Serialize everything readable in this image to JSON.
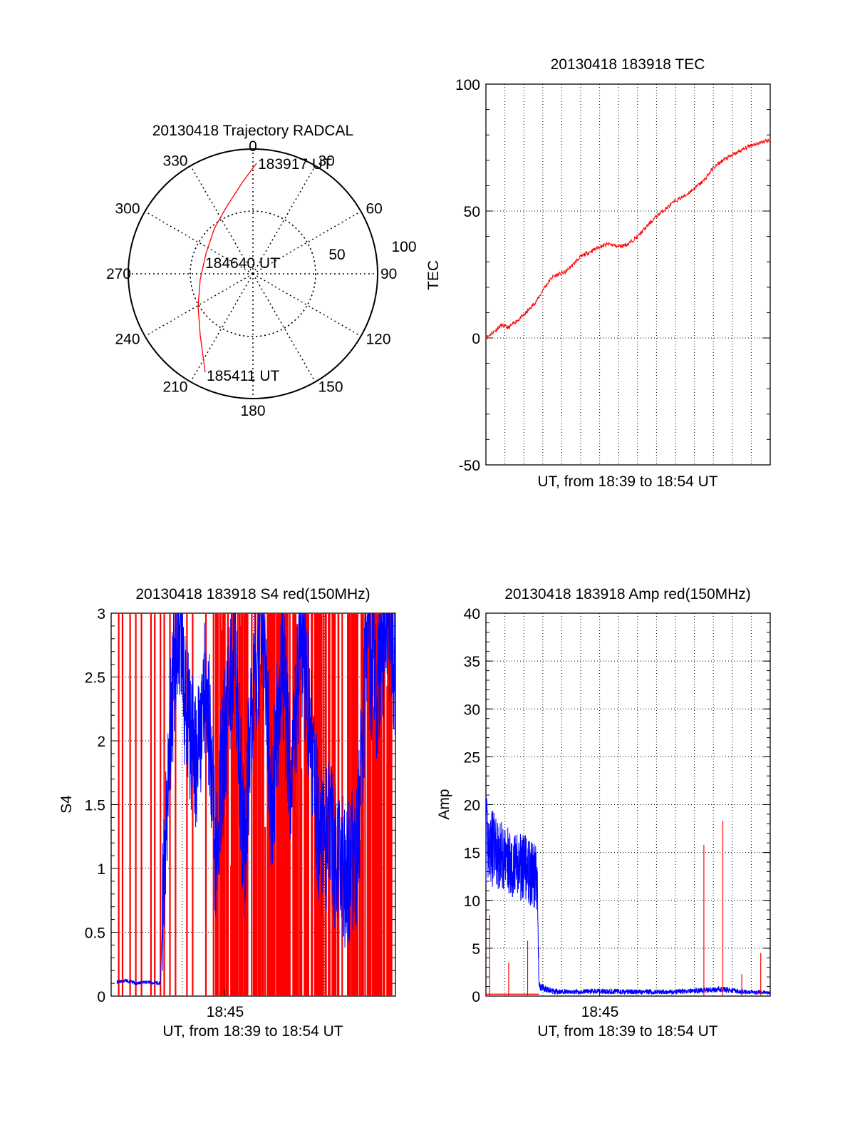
{
  "colors": {
    "red": "#ff0000",
    "blue": "#0000ff",
    "axis": "#000000",
    "grid": "#000000"
  },
  "chart_data": [
    {
      "type": "polar-trajectory",
      "title": "20130418 Trajectory RADCAL",
      "azimuth_labels": [
        "0",
        "30",
        "60",
        "90",
        "120",
        "150",
        "180",
        "210",
        "240",
        "270",
        "300",
        "330"
      ],
      "radial_labels": [
        "50",
        "100"
      ],
      "trajectory": [
        {
          "az": 1,
          "el": 0
        },
        {
          "az": 345,
          "el": 12
        },
        {
          "az": 320,
          "el": 26
        },
        {
          "az": 293,
          "el": 40
        },
        {
          "az": 270,
          "el": 48
        },
        {
          "az": 252,
          "el": 60
        },
        {
          "az": 237,
          "el": 78
        },
        {
          "az": 226,
          "el": 92
        }
      ],
      "annotations": [
        {
          "text": "183917 UT",
          "az": 1,
          "el": 0
        },
        {
          "text": "184640 UT",
          "az": 270,
          "el": 48
        },
        {
          "text": "185411 UT",
          "az": 226,
          "el": 92
        }
      ]
    },
    {
      "type": "line",
      "title": "20130418 183918 TEC",
      "ylabel": "TEC",
      "xlabel": "UT, from 18:39 to 18:54 UT",
      "ylim": [
        -50,
        100
      ],
      "yticks": [
        "-50",
        "0",
        "50",
        "100"
      ],
      "xlim_minutes": [
        0,
        15
      ],
      "series": [
        {
          "color": "red",
          "x": [
            0,
            0.5,
            0.8,
            1.2,
            1.5,
            2.0,
            2.5,
            2.8,
            3.0,
            3.5,
            3.8,
            4.2,
            4.6,
            5.0,
            5.5,
            6.0,
            6.5,
            7.0,
            7.5,
            8.0,
            8.5,
            9.0,
            9.5,
            10.0,
            10.5,
            11.0,
            11.5,
            12.0,
            12.5,
            13.0,
            13.5,
            14.0,
            14.5,
            15.0
          ],
          "values": [
            0,
            3,
            5,
            4,
            6,
            9,
            13,
            16,
            19,
            24,
            25,
            26,
            29,
            32,
            34,
            36,
            37,
            36,
            37,
            40,
            44,
            48,
            51,
            54,
            56,
            59,
            62,
            67,
            70,
            72,
            74,
            76,
            77,
            78
          ]
        }
      ]
    },
    {
      "type": "line",
      "title": "20130418 183918 S4 red(150MHz)",
      "ylabel": "S4",
      "xlabel": "UT, from 18:39 to 18:54 UT",
      "xtick_labels": [
        "18:45"
      ],
      "ylim": [
        0,
        3
      ],
      "yticks": [
        "0",
        "0.5",
        "1",
        "1.5",
        "2",
        "2.5",
        "3"
      ],
      "xlim_minutes": [
        0,
        15
      ],
      "series": [
        {
          "color": "red",
          "note_spikes_x": [
            0.4,
            0.6,
            1.0,
            1.3,
            1.6,
            2.1,
            2.3,
            2.6,
            2.8,
            3.1,
            3.4,
            4.0,
            4.3,
            5.0,
            5.6,
            6.0,
            6.5,
            7.2,
            7.6,
            8.0,
            8.4,
            8.8,
            9.2,
            9.6,
            10.0,
            10.4,
            10.8,
            11.3,
            12.0,
            12.5,
            13.0,
            13.4,
            13.8,
            14.2,
            14.6
          ]
        },
        {
          "color": "blue",
          "x": [
            0.3,
            0.8,
            1.4,
            2.0,
            2.6,
            2.8,
            3.0,
            3.2,
            3.5,
            4.0,
            4.5,
            5.0,
            5.5,
            6.0,
            6.5,
            7.0,
            7.5,
            8.0,
            8.5,
            9.0,
            9.5,
            10.0,
            10.5,
            11.0,
            11.5,
            12.0,
            12.5,
            13.0,
            13.5,
            14.0,
            14.5,
            15.0
          ],
          "values": [
            0.11,
            0.12,
            0.1,
            0.11,
            0.1,
            1.0,
            1.6,
            2.3,
            2.9,
            2.2,
            1.8,
            2.6,
            1.2,
            2.0,
            2.8,
            1.1,
            2.5,
            2.9,
            1.4,
            2.7,
            1.6,
            2.9,
            2.1,
            1.2,
            1.3,
            1.0,
            0.95,
            1.1,
            2.8,
            2.4,
            2.9,
            2.6
          ]
        }
      ]
    },
    {
      "type": "line",
      "title": "20130418 183918 Amp red(150MHz)",
      "ylabel": "Amp",
      "xlabel": "UT, from 18:39 to 18:54 UT",
      "xtick_labels": [
        "18:45"
      ],
      "ylim": [
        0,
        40
      ],
      "yticks": [
        "0",
        "5",
        "10",
        "15",
        "20",
        "25",
        "30",
        "35",
        "40"
      ],
      "xlim_minutes": [
        0,
        15
      ],
      "series": [
        {
          "color": "blue",
          "x": [
            0,
            0.5,
            1.0,
            1.5,
            2.0,
            2.5,
            2.7,
            2.8,
            3.5,
            4.5,
            6.0,
            8.0,
            10.0,
            11.5,
            12.5,
            13.5,
            14.5,
            15.0
          ],
          "high": [
            21,
            19,
            18,
            17,
            17,
            16,
            16,
            1.5,
            0.8,
            0.7,
            0.8,
            0.7,
            0.7,
            0.9,
            1.0,
            0.7,
            0.6,
            0.5
          ],
          "low": [
            12,
            11,
            11,
            10,
            10,
            9,
            9,
            0.5,
            0.2,
            0.2,
            0.2,
            0.2,
            0.2,
            0.3,
            0.4,
            0.2,
            0.2,
            0.2
          ]
        },
        {
          "color": "red",
          "spikes": [
            {
              "x": 0.2,
              "y": 8.5
            },
            {
              "x": 1.2,
              "y": 3.5
            },
            {
              "x": 2.2,
              "y": 5.8
            },
            {
              "x": 11.5,
              "y": 15.8
            },
            {
              "x": 12.5,
              "y": 18.3
            },
            {
              "x": 13.5,
              "y": 2.3
            },
            {
              "x": 14.5,
              "y": 4.5
            }
          ]
        }
      ]
    }
  ]
}
